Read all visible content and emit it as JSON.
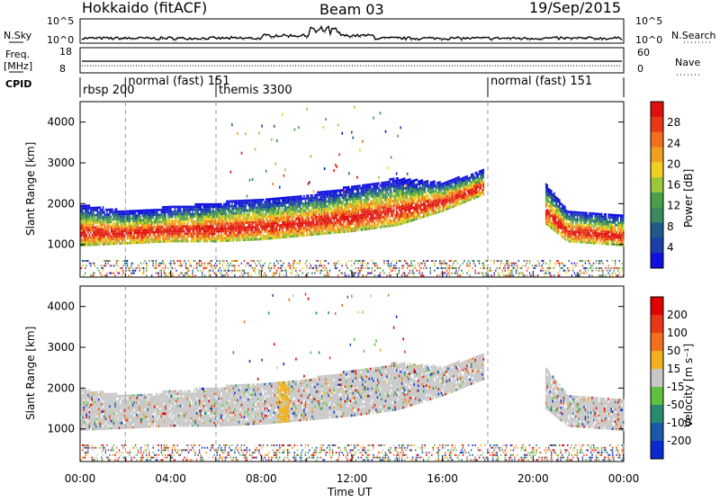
{
  "header": {
    "radar": "Hokkaido (fitACF)",
    "beam": "Beam 03",
    "date": "19/Sep/2015"
  },
  "noise_panel": {
    "left_label": "N.Sky",
    "right_label": "N.Search",
    "left_ticks": [
      "10^5",
      "10^0"
    ],
    "right_ticks": [
      "10^5",
      "10^0"
    ]
  },
  "freq_panel": {
    "left_label_top": "Freq.",
    "left_label_bottom": "[MHz]",
    "left_ticks": [
      "18",
      "8"
    ],
    "right_label": "Nave",
    "right_ticks": [
      "60",
      "0"
    ]
  },
  "cpid": {
    "label": "CPID",
    "modes": [
      {
        "name": "rbsp 200",
        "start_hour": 0.0
      },
      {
        "name": "normal (fast) 151",
        "start_hour": 2.0
      },
      {
        "name": "themis 3300",
        "start_hour": 6.0
      },
      {
        "name": "normal (fast) 151",
        "start_hour": 18.0
      }
    ]
  },
  "chart_data": [
    {
      "type": "heatmap",
      "name": "power",
      "ylabel": "Slant Range [km]",
      "x_range_hours": [
        0,
        24
      ],
      "ylim": [
        200,
        4500
      ],
      "yticks": [
        1000,
        2000,
        3000,
        4000
      ],
      "colorbar_label": "Power [dB]",
      "colorbar_ticks": [
        "28",
        "24",
        "20",
        "16",
        "12",
        "8",
        "4"
      ],
      "colorbar_colors": [
        "#1010e0",
        "#1a3fa8",
        "#1f5a8a",
        "#3a8a60",
        "#4aa048",
        "#9ac83a",
        "#f0d020",
        "#f0a020",
        "#f07020",
        "#e83818",
        "#e01010"
      ],
      "echo_band": [
        {
          "hour": 0.0,
          "low": 950,
          "high": 1950
        },
        {
          "hour": 2.0,
          "low": 1000,
          "high": 1800
        },
        {
          "hour": 4.0,
          "low": 1050,
          "high": 1900
        },
        {
          "hour": 6.0,
          "low": 1050,
          "high": 2000
        },
        {
          "hour": 8.0,
          "low": 1100,
          "high": 2100
        },
        {
          "hour": 10.0,
          "low": 1200,
          "high": 2200
        },
        {
          "hour": 12.0,
          "low": 1300,
          "high": 2400
        },
        {
          "hour": 14.0,
          "low": 1450,
          "high": 2600
        },
        {
          "hour": 16.0,
          "low": 1800,
          "high": 2500
        },
        {
          "hour": 17.8,
          "low": 2200,
          "high": 2800
        }
      ],
      "evening_band": [
        {
          "hour": 20.5,
          "low": 1500,
          "high": 2500
        },
        {
          "hour": 21.5,
          "low": 1050,
          "high": 1800
        },
        {
          "hour": 24.0,
          "low": 950,
          "high": 1700
        }
      ]
    },
    {
      "type": "heatmap",
      "name": "velocity",
      "ylabel": "Slant Range [km]",
      "x_range_hours": [
        0,
        24
      ],
      "ylim": [
        200,
        4500
      ],
      "yticks": [
        1000,
        2000,
        3000,
        4000
      ],
      "xticks": [
        "00:00",
        "04:00",
        "08:00",
        "12:00",
        "16:00",
        "20:00",
        "00:00"
      ],
      "xlabel": "Time UT",
      "colorbar_label": "Velocity [m s⁻¹]",
      "colorbar_ticks": [
        "200",
        "100",
        "50",
        "15",
        "-15",
        "-50",
        "-100",
        "-200"
      ],
      "colorbar_colors": [
        "#0a2ad0",
        "#1a5aa8",
        "#2a8a70",
        "#60c040",
        "#c8c8c8",
        "#f0b020",
        "#f07020",
        "#e83818",
        "#e00000"
      ]
    }
  ]
}
